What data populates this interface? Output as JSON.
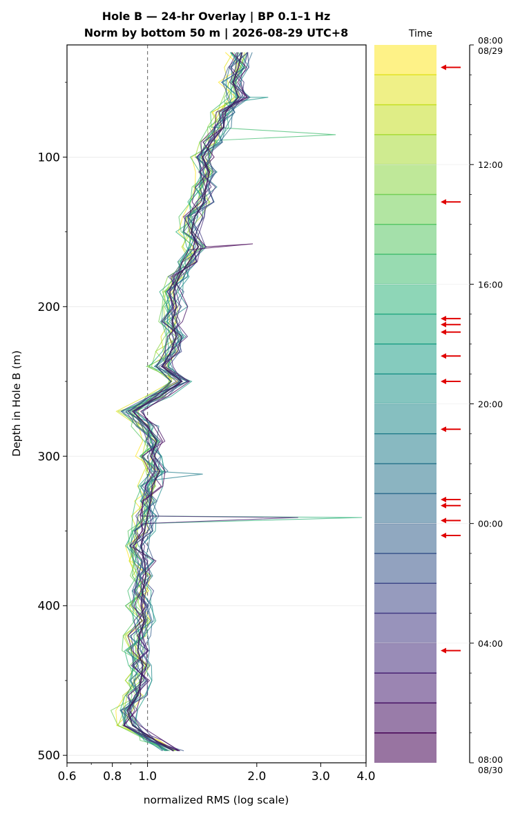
{
  "chart_data": [
    {
      "type": "line",
      "title_line1": "Hole B — 24-hr Overlay  |  BP 0.1–1 Hz",
      "title_line2": "Norm by bottom 50 m  |  2026-08-29 UTC+8",
      "xlabel": "normalized RMS  (log scale)",
      "ylabel": "Depth in Hole B (m)",
      "x_scale": "log",
      "xlim": [
        0.6,
        4.0
      ],
      "ylim": [
        505,
        25
      ],
      "x_ticks": [
        "0.6",
        "0.8",
        "1.0",
        "2.0",
        "3.0",
        "4.0"
      ],
      "y_ticks": [
        "100",
        "200",
        "300",
        "400",
        "500"
      ],
      "reference_line": {
        "x": 1.0,
        "style": "dashed"
      },
      "grid": "horizontal",
      "n_traces": 24,
      "colormap": "viridis",
      "depth": [
        30,
        40,
        50,
        60,
        70,
        80,
        90,
        100,
        110,
        120,
        130,
        140,
        150,
        160,
        170,
        180,
        190,
        200,
        210,
        220,
        230,
        240,
        250,
        260,
        270,
        280,
        290,
        300,
        310,
        320,
        330,
        340,
        350,
        360,
        370,
        380,
        390,
        400,
        410,
        420,
        430,
        440,
        450,
        460,
        470,
        480,
        490,
        497
      ],
      "median_rms": [
        1.82,
        1.78,
        1.72,
        1.78,
        1.64,
        1.62,
        1.5,
        1.42,
        1.48,
        1.45,
        1.43,
        1.35,
        1.32,
        1.38,
        1.3,
        1.22,
        1.18,
        1.2,
        1.17,
        1.2,
        1.16,
        1.1,
        1.24,
        1.08,
        0.91,
        1.0,
        1.06,
        1.02,
        1.08,
        1.03,
        1.02,
        1.0,
        0.98,
        0.96,
        0.98,
        0.99,
        0.97,
        0.96,
        0.98,
        0.95,
        0.94,
        0.97,
        0.96,
        0.94,
        0.88,
        0.91,
        1.05,
        1.18
      ],
      "spikes": [
        {
          "depth": 60,
          "rms": 2.15
        },
        {
          "depth": 85,
          "rms": 3.3
        },
        {
          "depth": 158,
          "rms": 1.95
        },
        {
          "depth": 341,
          "rms": 3.9
        },
        {
          "depth": 341,
          "rms": 2.6
        },
        {
          "depth": 312,
          "rms": 1.42
        }
      ]
    },
    {
      "type": "colorbar",
      "label": "Time",
      "ticks": [
        "08:00\n08/29",
        "12:00",
        "16:00",
        "20:00",
        "00:00",
        "04:00",
        "08:00\n08/30"
      ],
      "n_bands": 24,
      "colors": [
        "#440154",
        "#482173",
        "#433e85",
        "#38588c",
        "#2d708e",
        "#25858e",
        "#1e9b8a",
        "#2ab07f",
        "#52c569",
        "#86d549",
        "#c2df23",
        "#fde725"
      ],
      "marked_hours": [
        0.75,
        5.25,
        9.15,
        9.35,
        9.6,
        10.4,
        11.25,
        12.85,
        15.2,
        15.4,
        15.9,
        16.4,
        20.25
      ]
    }
  ]
}
